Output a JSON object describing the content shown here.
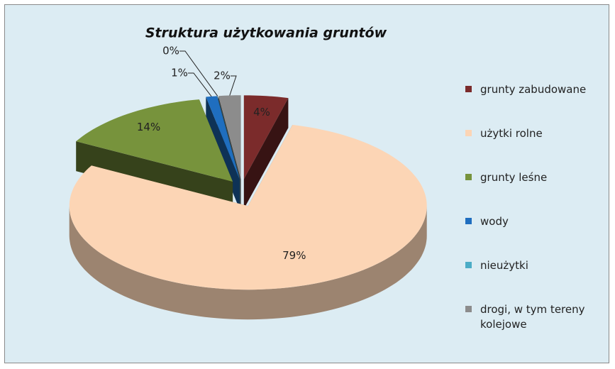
{
  "chart_data": {
    "type": "pie",
    "title": "Struktura użytkowania gruntów",
    "categories": [
      "grunty zabudowane",
      "użytki rolne",
      "grunty leśne",
      "wody",
      "nieużytki",
      "drogi, w tym tereny kolejowe"
    ],
    "values": [
      4,
      79,
      14,
      1,
      0,
      2
    ],
    "value_labels": [
      "4%",
      "79%",
      "14%",
      "1%",
      "0%",
      "2%"
    ],
    "colors": [
      "#7b2b2b",
      "#fcd5b5",
      "#77933c",
      "#1f6ebf",
      "#4bacc6",
      "#8c8c8c"
    ],
    "legend": "right"
  }
}
